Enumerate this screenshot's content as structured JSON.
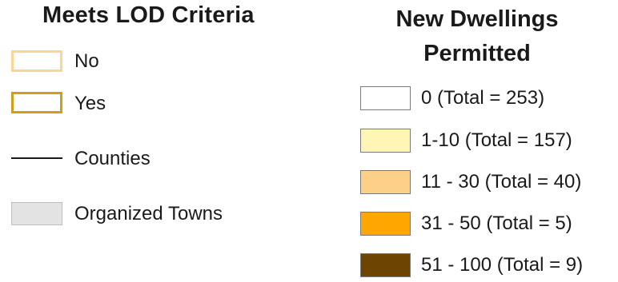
{
  "lod_legend": {
    "title": "Meets LOD Criteria",
    "items": [
      {
        "label": "No",
        "outline_color": "#fcd592"
      },
      {
        "label": "Yes",
        "outline_color": "#d19d1a"
      },
      {
        "label": "Counties",
        "line_color": "#1a1a1a"
      },
      {
        "label": "Organized Towns",
        "fill_color": "#e3e3e3"
      }
    ]
  },
  "dwellings_legend": {
    "title_line1": "New Dwellings",
    "title_line2": "Permitted",
    "classes": [
      {
        "label": "0 (Total = 253)",
        "color": "#ffffff"
      },
      {
        "label": "1-10 (Total = 157)",
        "color": "#fff6b5"
      },
      {
        "label": "11 - 30 (Total = 40)",
        "color": "#fdd08a"
      },
      {
        "label": "31 - 50 (Total = 5)",
        "color": "#ffa600"
      },
      {
        "label": "51 - 100 (Total = 9)",
        "color": "#6e4500"
      }
    ]
  }
}
